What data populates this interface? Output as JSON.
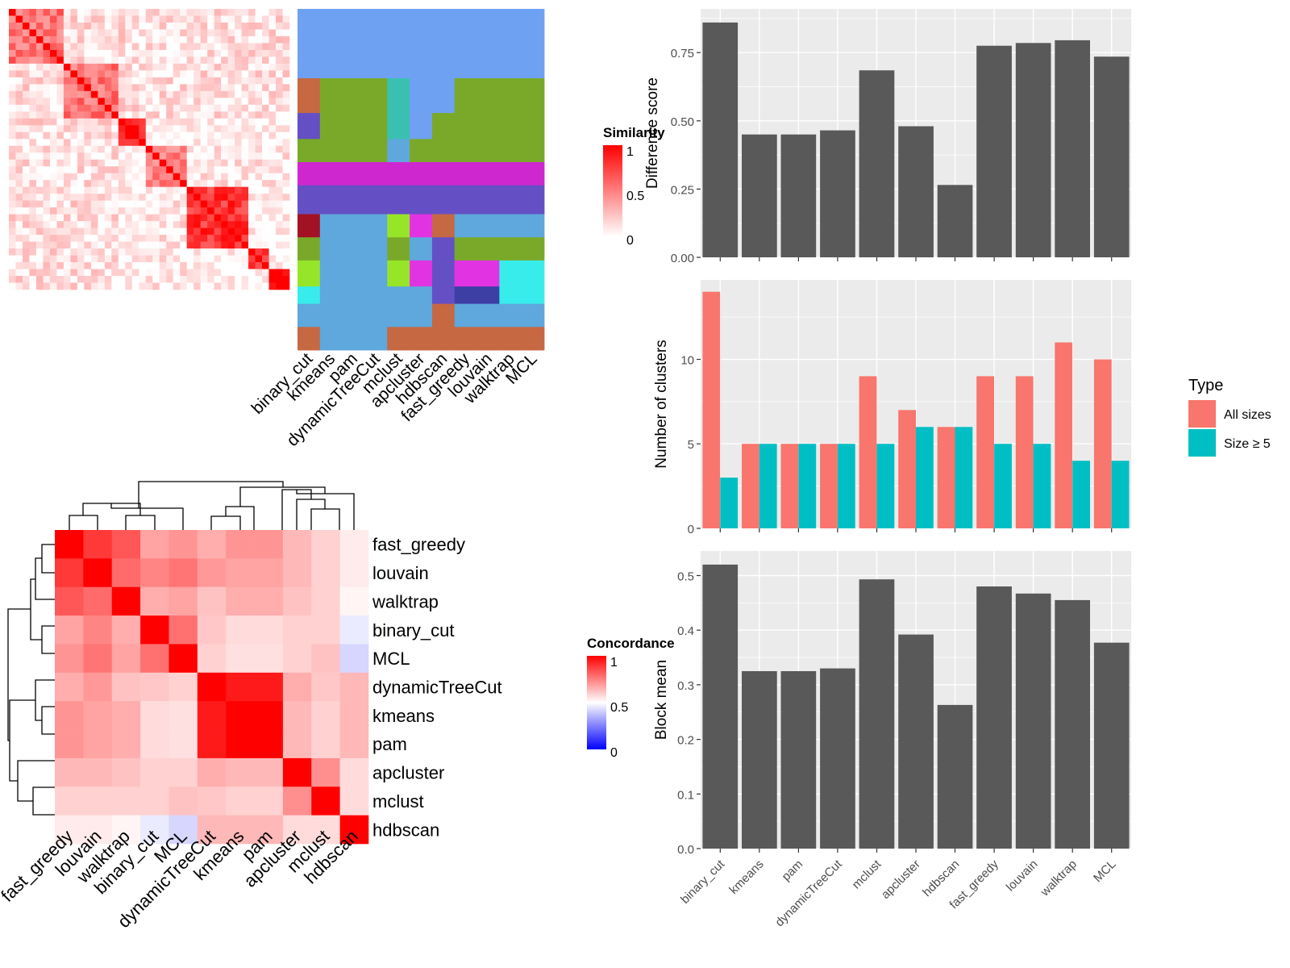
{
  "methods_heat": [
    "fast_greedy",
    "louvain",
    "walktrap",
    "binary_cut",
    "MCL",
    "dynamicTreeCut",
    "kmeans",
    "pam",
    "apcluster",
    "mclust",
    "hdbscan"
  ],
  "methods_panel": [
    "binary_cut",
    "kmeans",
    "pam",
    "dynamicTreeCut",
    "mclust",
    "apcluster",
    "hdbscan",
    "fast_greedy",
    "louvain",
    "walktrap",
    "MCL"
  ],
  "similarity_legend": {
    "title": "Similarity",
    "ticks": [
      "1",
      "0.5",
      "0"
    ]
  },
  "concordance_legend": {
    "title": "Concordance",
    "ticks": [
      "1",
      "0.5",
      "0"
    ]
  },
  "colors": {
    "panel_bg": "#ebebeb",
    "bar": "#595959",
    "all_sizes": "#f8766d",
    "size5": "#00bfc4",
    "heat_high": "#ff0000",
    "heat_mid": "#ffffff",
    "heat_low": "#0000ff"
  },
  "chart_data": [
    {
      "type": "heatmap",
      "name": "similarity_matrix",
      "legend_title": "Similarity",
      "value_range": [
        0,
        1
      ],
      "blocks": [
        {
          "size": 8,
          "within": 0.55,
          "cross": 0.12
        },
        {
          "size": 8,
          "within": 0.55,
          "cross": 0.12
        },
        {
          "size": 4,
          "within": 0.9,
          "cross": 0.02
        },
        {
          "size": 6,
          "within": 0.45,
          "cross": 0.08
        },
        {
          "size": 9,
          "within": 0.8,
          "cross": 0.05
        },
        {
          "size": 3,
          "within": 0.7,
          "cross": 0.05
        },
        {
          "size": 3,
          "within": 0.9,
          "cross": 0.03
        }
      ]
    },
    {
      "type": "heatmap",
      "name": "cluster_labels",
      "columns": [
        "binary_cut",
        "kmeans",
        "pam",
        "dynamicTreeCut",
        "mclust",
        "apcluster",
        "hdbscan",
        "fast_greedy",
        "louvain",
        "walktrap",
        "MCL"
      ],
      "palette": [
        "#6fa1f2",
        "#7aa92a",
        "#39c0b0",
        "#c66842",
        "#6450c4",
        "#cf27cf",
        "#5ea8dd",
        "#a31224",
        "#97e529",
        "#e233e3",
        "#38ecec",
        "#3d3fa5"
      ],
      "segments": [
        {
          "rows": 24,
          "labels": [
            0,
            0,
            0,
            0,
            0,
            0,
            0,
            0,
            0,
            0,
            0
          ]
        },
        {
          "rows": 12,
          "labels": [
            3,
            1,
            1,
            1,
            2,
            0,
            0,
            1,
            1,
            1,
            1
          ]
        },
        {
          "rows": 9,
          "labels": [
            4,
            1,
            1,
            1,
            2,
            0,
            1,
            1,
            1,
            1,
            1
          ]
        },
        {
          "rows": 8,
          "labels": [
            1,
            1,
            1,
            1,
            6,
            1,
            1,
            1,
            1,
            1,
            1
          ]
        },
        {
          "rows": 8,
          "labels": [
            5,
            5,
            5,
            5,
            5,
            5,
            5,
            5,
            5,
            5,
            5
          ]
        },
        {
          "rows": 10,
          "labels": [
            4,
            4,
            4,
            4,
            4,
            4,
            4,
            4,
            4,
            4,
            4
          ]
        },
        {
          "rows": 8,
          "labels": [
            7,
            6,
            6,
            6,
            8,
            9,
            3,
            6,
            6,
            6,
            6
          ]
        },
        {
          "rows": 8,
          "labels": [
            1,
            6,
            6,
            6,
            1,
            6,
            4,
            1,
            1,
            1,
            1
          ]
        },
        {
          "rows": 9,
          "labels": [
            8,
            6,
            6,
            6,
            8,
            9,
            4,
            9,
            9,
            10,
            10
          ]
        },
        {
          "rows": 6,
          "labels": [
            10,
            6,
            6,
            6,
            6,
            6,
            4,
            11,
            11,
            10,
            10
          ]
        },
        {
          "rows": 8,
          "labels": [
            6,
            6,
            6,
            6,
            6,
            6,
            3,
            6,
            6,
            6,
            6
          ]
        },
        {
          "rows": 8,
          "labels": [
            3,
            6,
            6,
            6,
            3,
            3,
            3,
            3,
            3,
            3,
            3
          ]
        }
      ]
    },
    {
      "type": "heatmap",
      "name": "concordance",
      "legend_title": "Concordance",
      "value_range": [
        0,
        1
      ],
      "rows": [
        "fast_greedy",
        "louvain",
        "walktrap",
        "binary_cut",
        "MCL",
        "dynamicTreeCut",
        "kmeans",
        "pam",
        "apcluster",
        "mclust",
        "hdbscan"
      ],
      "columns": [
        "fast_greedy",
        "louvain",
        "walktrap",
        "binary_cut",
        "MCL",
        "dynamicTreeCut",
        "kmeans",
        "pam",
        "apcluster",
        "mclust",
        "hdbscan"
      ],
      "values": [
        [
          1.0,
          0.89,
          0.83,
          0.68,
          0.71,
          0.66,
          0.71,
          0.71,
          0.64,
          0.59,
          0.54
        ],
        [
          0.89,
          1.0,
          0.79,
          0.74,
          0.77,
          0.7,
          0.68,
          0.68,
          0.64,
          0.59,
          0.54
        ],
        [
          0.83,
          0.79,
          1.0,
          0.66,
          0.68,
          0.62,
          0.66,
          0.66,
          0.62,
          0.59,
          0.52
        ],
        [
          0.68,
          0.74,
          0.66,
          1.0,
          0.78,
          0.61,
          0.57,
          0.57,
          0.59,
          0.59,
          0.46
        ],
        [
          0.71,
          0.77,
          0.68,
          0.78,
          1.0,
          0.59,
          0.56,
          0.56,
          0.59,
          0.62,
          0.42
        ],
        [
          0.66,
          0.7,
          0.62,
          0.61,
          0.59,
          1.0,
          0.95,
          0.95,
          0.66,
          0.61,
          0.64
        ],
        [
          0.71,
          0.68,
          0.66,
          0.57,
          0.56,
          0.95,
          1.0,
          1.0,
          0.64,
          0.59,
          0.64
        ],
        [
          0.71,
          0.68,
          0.66,
          0.57,
          0.56,
          0.95,
          1.0,
          1.0,
          0.64,
          0.59,
          0.64
        ],
        [
          0.64,
          0.64,
          0.62,
          0.59,
          0.59,
          0.66,
          0.64,
          0.64,
          1.0,
          0.72,
          0.57
        ],
        [
          0.59,
          0.59,
          0.59,
          0.59,
          0.62,
          0.61,
          0.59,
          0.59,
          0.72,
          1.0,
          0.57
        ],
        [
          0.54,
          0.54,
          0.52,
          0.46,
          0.42,
          0.64,
          0.64,
          0.64,
          0.57,
          0.57,
          1.0
        ]
      ]
    },
    {
      "type": "bar",
      "name": "difference_score",
      "categories": [
        "binary_cut",
        "kmeans",
        "pam",
        "dynamicTreeCut",
        "mclust",
        "apcluster",
        "hdbscan",
        "fast_greedy",
        "louvain",
        "walktrap",
        "MCL"
      ],
      "values": [
        0.86,
        0.45,
        0.45,
        0.465,
        0.685,
        0.48,
        0.265,
        0.775,
        0.785,
        0.795,
        0.735
      ],
      "ylabel": "Difference score",
      "ylim": [
        0,
        0.91
      ],
      "yticks": [
        "0.00",
        "0.25",
        "0.50",
        "0.75"
      ],
      "yticks_values": [
        0,
        0.25,
        0.5,
        0.75
      ]
    },
    {
      "type": "bar",
      "name": "number_of_clusters",
      "categories": [
        "binary_cut",
        "kmeans",
        "pam",
        "dynamicTreeCut",
        "mclust",
        "apcluster",
        "hdbscan",
        "fast_greedy",
        "louvain",
        "walktrap",
        "MCL"
      ],
      "series": [
        {
          "name": "All sizes",
          "values": [
            14,
            5,
            5,
            5,
            9,
            7,
            6,
            9,
            9,
            11,
            10
          ]
        },
        {
          "name": "Size ≥ 5",
          "values": [
            3,
            5,
            5,
            5,
            5,
            6,
            6,
            5,
            5,
            4,
            4
          ]
        }
      ],
      "ylabel": "Number of clusters",
      "ylim": [
        0,
        14.7
      ],
      "yticks": [
        "0",
        "5",
        "10"
      ],
      "yticks_values": [
        0,
        5,
        10
      ],
      "legend_title": "Type",
      "legend_position": "right"
    },
    {
      "type": "bar",
      "name": "block_mean",
      "categories": [
        "binary_cut",
        "kmeans",
        "pam",
        "dynamicTreeCut",
        "mclust",
        "apcluster",
        "hdbscan",
        "fast_greedy",
        "louvain",
        "walktrap",
        "MCL"
      ],
      "values": [
        0.52,
        0.325,
        0.325,
        0.33,
        0.493,
        0.392,
        0.263,
        0.48,
        0.467,
        0.455,
        0.377
      ],
      "ylabel": "Block mean",
      "ylim": [
        0,
        0.545
      ],
      "yticks": [
        "0.0",
        "0.1",
        "0.2",
        "0.3",
        "0.4",
        "0.5"
      ],
      "yticks_values": [
        0,
        0.1,
        0.2,
        0.3,
        0.4,
        0.5
      ]
    }
  ]
}
